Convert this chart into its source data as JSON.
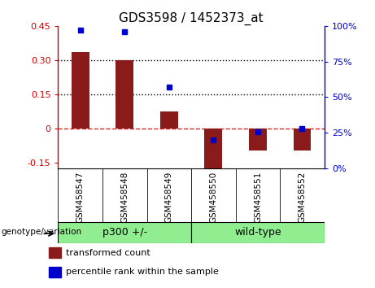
{
  "title": "GDS3598 / 1452373_at",
  "categories": [
    "GSM458547",
    "GSM458548",
    "GSM458549",
    "GSM458550",
    "GSM458551",
    "GSM458552"
  ],
  "bar_values": [
    0.335,
    0.3,
    0.075,
    -0.175,
    -0.095,
    -0.095
  ],
  "percentile_values": [
    97,
    96,
    57,
    20,
    26,
    28
  ],
  "bar_color": "#8B1A1A",
  "dot_color": "#0000CC",
  "left_ylim": [
    -0.175,
    0.45
  ],
  "right_ylim": [
    0,
    100
  ],
  "left_yticks": [
    -0.15,
    0.0,
    0.15,
    0.3,
    0.45
  ],
  "right_yticks": [
    0,
    25,
    50,
    75,
    100
  ],
  "left_yticklabels": [
    "-0.15",
    "0",
    "0.15",
    "0.30",
    "0.45"
  ],
  "right_yticklabels": [
    "0%",
    "25%",
    "50%",
    "75%",
    "100%"
  ],
  "hline_values": [
    0.15,
    0.3
  ],
  "group_info": [
    {
      "label": "p300 +/-",
      "start": 0,
      "end": 2,
      "color": "#90EE90"
    },
    {
      "label": "wild-type",
      "start": 3,
      "end": 5,
      "color": "#90EE90"
    }
  ],
  "group_label_prefix": "genotype/variation",
  "legend_bar_label": "transformed count",
  "legend_dot_label": "percentile rank within the sample",
  "background_color": "#FFFFFF",
  "plot_bg_color": "#FFFFFF",
  "xticklabel_bg": "#C8C8C8",
  "bar_width": 0.4
}
